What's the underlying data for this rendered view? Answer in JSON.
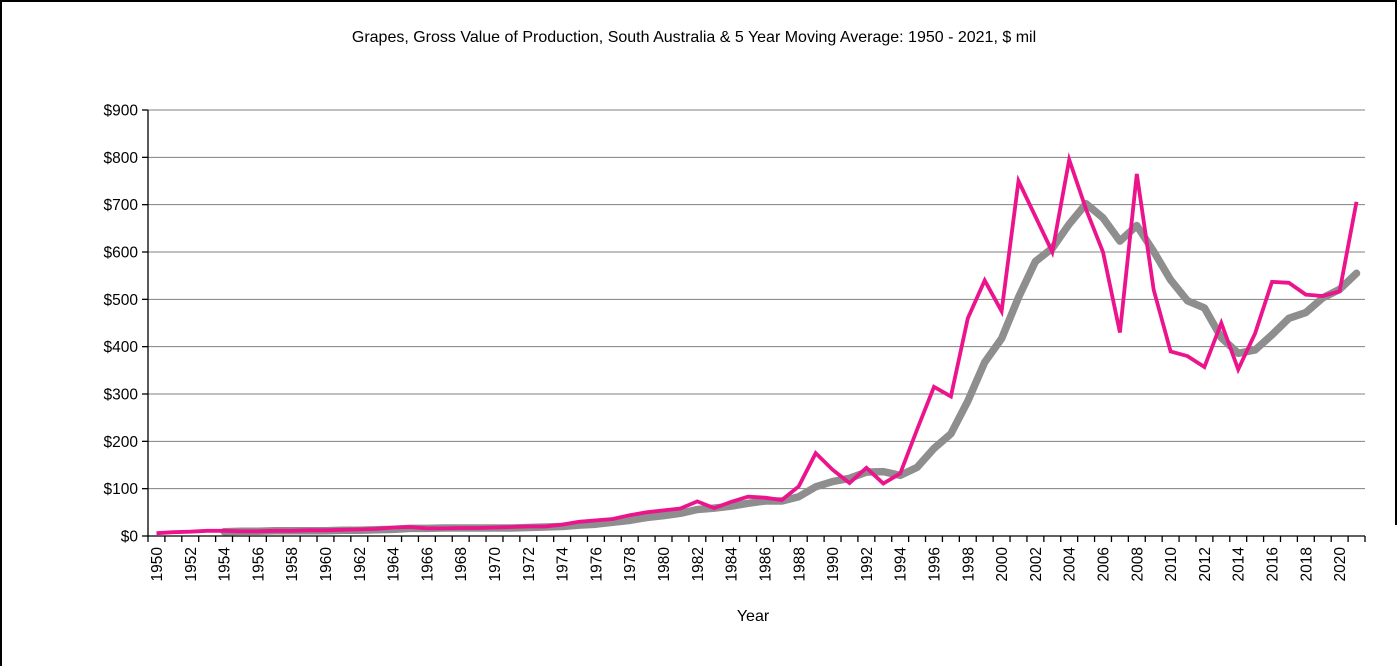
{
  "window": {
    "background": "#ffffff",
    "frame_border_color": "#000000"
  },
  "chart_data": {
    "type": "line",
    "title": "Grapes, Gross Value of Production, South Australia & 5 Year Moving Average: 1950 - 2021, $ mil",
    "xlabel": "Year",
    "ylabel": "",
    "x_start": 1950,
    "x_end": 2021,
    "ylim": [
      0,
      900
    ],
    "y_tick_step": 100,
    "grid": true,
    "legend_position": "none",
    "axis_color": "#000000",
    "gridline_color": "#808080",
    "y_tick_labels": [
      "$0",
      "$100",
      "$200",
      "$300",
      "$400",
      "$500",
      "$600",
      "$700",
      "$800",
      "$900"
    ],
    "x_tick_labels": [
      "1950",
      "1952",
      "1954",
      "1956",
      "1958",
      "1960",
      "1962",
      "1964",
      "1966",
      "1968",
      "1970",
      "1972",
      "1974",
      "1976",
      "1978",
      "1980",
      "1982",
      "1984",
      "1986",
      "1988",
      "1990",
      "1992",
      "1994",
      "1996",
      "1998",
      "2000",
      "2002",
      "2004",
      "2006",
      "2008",
      "2010",
      "2012",
      "2014",
      "2016",
      "2018",
      "2020"
    ],
    "series": [
      {
        "name": "5 Year Moving Average",
        "color": "#8E8E8E",
        "width": 7.5,
        "start_year": 1954,
        "values": [
          9,
          10,
          10,
          11,
          11,
          11,
          11,
          12,
          12,
          13,
          14,
          16,
          16,
          17,
          17,
          17,
          17,
          17,
          18,
          19,
          20,
          23,
          25,
          29,
          33,
          39,
          43,
          48,
          56,
          59,
          63,
          69,
          74,
          74,
          83,
          104,
          115,
          122,
          135,
          136,
          128,
          145,
          185,
          216,
          285,
          367,
          417,
          504,
          580,
          608,
          659,
          702,
          672,
          623,
          656,
          601,
          541,
          497,
          482,
          419,
          386,
          393,
          425,
          460,
          472,
          503,
          521,
          555
        ]
      },
      {
        "name": "Gross Value of Production",
        "color": "#EB148C",
        "width": 3.8,
        "start_year": 1950,
        "values": [
          6,
          8,
          9,
          11,
          11,
          10,
          10,
          11,
          11,
          12,
          12,
          13,
          14,
          15,
          18,
          19,
          16,
          16,
          17,
          17,
          18,
          19,
          20,
          20,
          24,
          30,
          33,
          36,
          44,
          50,
          54,
          58,
          73,
          59,
          72,
          83,
          81,
          76,
          105,
          175,
          140,
          112,
          144,
          111,
          132,
          225,
          315,
          295,
          460,
          540,
          475,
          750,
          675,
          600,
          795,
          690,
          600,
          430,
          765,
          520,
          390,
          380,
          357,
          450,
          352,
          428,
          537,
          535,
          510,
          507,
          517,
          706
        ]
      }
    ]
  }
}
